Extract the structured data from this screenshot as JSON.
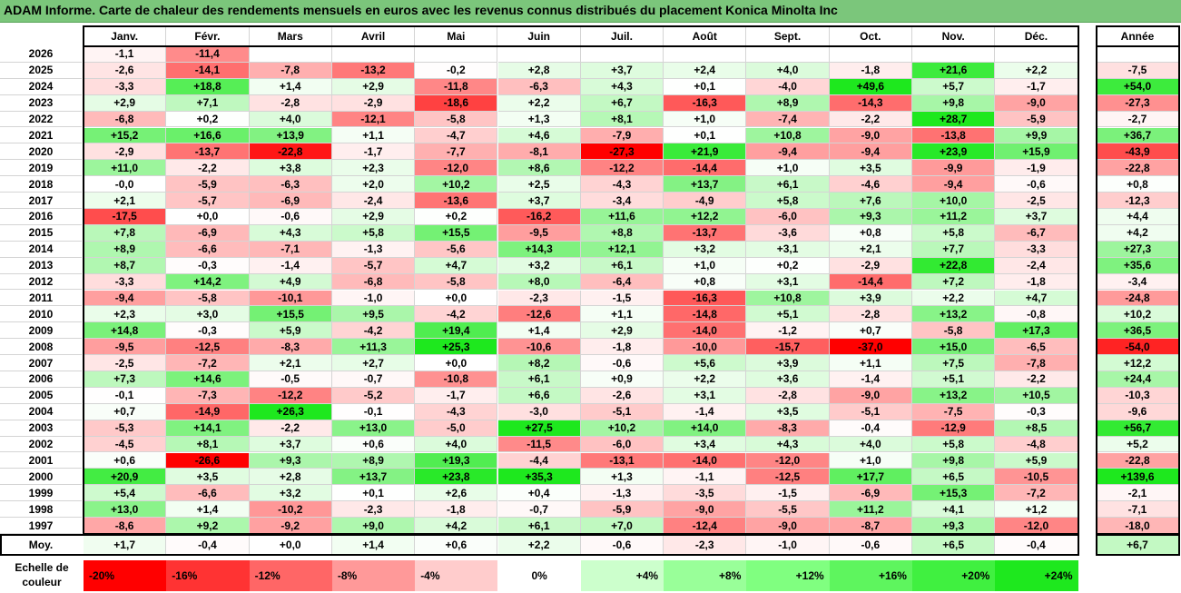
{
  "title": "ADAM Informe. Carte de chaleur des rendements mensuels en euros avec les revenus connus distribués du placement Konica Minolta Inc",
  "chart_data": {
    "type": "heatmap",
    "columns": [
      "Janv.",
      "Févr.",
      "Mars",
      "Avril",
      "Mai",
      "Juin",
      "Juil.",
      "Août",
      "Sept.",
      "Oct.",
      "Nov.",
      "Déc."
    ],
    "year_column": "Année",
    "average_label": "Moy.",
    "rows": [
      {
        "year": "2026",
        "values": [
          "-1,1",
          "-11,4",
          "",
          "",
          "",
          "",
          "",
          "",
          "",
          "",
          "",
          ""
        ],
        "annual": ""
      },
      {
        "year": "2025",
        "values": [
          "-2,6",
          "-14,1",
          "-7,8",
          "-13,2",
          "-0,2",
          "+2,8",
          "+3,7",
          "+2,4",
          "+4,0",
          "-1,8",
          "+21,6",
          "+2,2"
        ],
        "annual": "-7,5"
      },
      {
        "year": "2024",
        "values": [
          "-3,3",
          "+18,8",
          "+1,4",
          "+2,9",
          "-11,8",
          "-6,3",
          "+4,3",
          "+0,1",
          "-4,0",
          "+49,6",
          "+5,7",
          "-1,7"
        ],
        "annual": "+54,0"
      },
      {
        "year": "2023",
        "values": [
          "+2,9",
          "+7,1",
          "-2,8",
          "-2,9",
          "-18,6",
          "+2,2",
          "+6,7",
          "-16,3",
          "+8,9",
          "-14,3",
          "+9,8",
          "-9,0"
        ],
        "annual": "-27,3"
      },
      {
        "year": "2022",
        "values": [
          "-6,8",
          "+0,2",
          "+4,0",
          "-12,1",
          "-5,8",
          "+1,3",
          "+8,1",
          "+1,0",
          "-7,4",
          "-2,2",
          "+28,7",
          "-5,9"
        ],
        "annual": "-2,7"
      },
      {
        "year": "2021",
        "values": [
          "+15,2",
          "+16,6",
          "+13,9",
          "+1,1",
          "-4,7",
          "+4,6",
          "-7,9",
          "+0,1",
          "+10,8",
          "-9,0",
          "-13,8",
          "+9,9"
        ],
        "annual": "+36,7"
      },
      {
        "year": "2020",
        "values": [
          "-2,9",
          "-13,7",
          "-22,8",
          "-1,7",
          "-7,7",
          "-8,1",
          "-27,3",
          "+21,9",
          "-9,4",
          "-9,4",
          "+23,9",
          "+15,9"
        ],
        "annual": "-43,9"
      },
      {
        "year": "2019",
        "values": [
          "+11,0",
          "-2,2",
          "+3,8",
          "+2,3",
          "-12,0",
          "+8,6",
          "-12,2",
          "-14,4",
          "+1,0",
          "+3,5",
          "-9,9",
          "-1,9"
        ],
        "annual": "-22,8"
      },
      {
        "year": "2018",
        "values": [
          "-0,0",
          "-5,9",
          "-6,3",
          "+2,0",
          "+10,2",
          "+2,5",
          "-4,3",
          "+13,7",
          "+6,1",
          "-4,6",
          "-9,4",
          "-0,6"
        ],
        "annual": "+0,8"
      },
      {
        "year": "2017",
        "values": [
          "+2,1",
          "-5,7",
          "-6,9",
          "-2,4",
          "-13,6",
          "+3,7",
          "-3,4",
          "-4,9",
          "+5,8",
          "+7,6",
          "+10,0",
          "-2,5"
        ],
        "annual": "-12,3"
      },
      {
        "year": "2016",
        "values": [
          "-17,5",
          "+0,0",
          "-0,6",
          "+2,9",
          "+0,2",
          "-16,2",
          "+11,6",
          "+12,2",
          "-6,0",
          "+9,3",
          "+11,2",
          "+3,7"
        ],
        "annual": "+4,4"
      },
      {
        "year": "2015",
        "values": [
          "+7,8",
          "-6,9",
          "+4,3",
          "+5,8",
          "+15,5",
          "-9,5",
          "+8,8",
          "-13,7",
          "-3,6",
          "+0,8",
          "+5,8",
          "-6,7"
        ],
        "annual": "+4,2"
      },
      {
        "year": "2014",
        "values": [
          "+8,9",
          "-6,6",
          "-7,1",
          "-1,3",
          "-5,6",
          "+14,3",
          "+12,1",
          "+3,2",
          "+3,1",
          "+2,1",
          "+7,7",
          "-3,3"
        ],
        "annual": "+27,3"
      },
      {
        "year": "2013",
        "values": [
          "+8,7",
          "-0,3",
          "-1,4",
          "-5,7",
          "+4,7",
          "+3,2",
          "+6,1",
          "+1,0",
          "+0,2",
          "-2,9",
          "+22,8",
          "-2,4"
        ],
        "annual": "+35,6"
      },
      {
        "year": "2012",
        "values": [
          "-3,3",
          "+14,2",
          "+4,9",
          "-6,8",
          "-5,8",
          "+8,0",
          "-6,4",
          "+0,8",
          "+3,1",
          "-14,4",
          "+7,2",
          "-1,8"
        ],
        "annual": "-3,4"
      },
      {
        "year": "2011",
        "values": [
          "-9,4",
          "-5,8",
          "-10,1",
          "-1,0",
          "+0,0",
          "-2,3",
          "-1,5",
          "-16,3",
          "+10,8",
          "+3,9",
          "+2,2",
          "+4,7"
        ],
        "annual": "-24,8"
      },
      {
        "year": "2010",
        "values": [
          "+2,3",
          "+3,0",
          "+15,5",
          "+9,5",
          "-4,2",
          "-12,6",
          "+1,1",
          "-14,8",
          "+5,1",
          "-2,8",
          "+13,2",
          "-0,8"
        ],
        "annual": "+10,2"
      },
      {
        "year": "2009",
        "values": [
          "+14,8",
          "-0,3",
          "+5,9",
          "-4,2",
          "+19,4",
          "+1,4",
          "+2,9",
          "-14,0",
          "-1,2",
          "+0,7",
          "-5,8",
          "+17,3"
        ],
        "annual": "+36,5"
      },
      {
        "year": "2008",
        "values": [
          "-9,5",
          "-12,5",
          "-8,3",
          "+11,3",
          "+25,3",
          "-10,6",
          "-1,8",
          "-10,0",
          "-15,7",
          "-37,0",
          "+15,0",
          "-6,5"
        ],
        "annual": "-54,0"
      },
      {
        "year": "2007",
        "values": [
          "-2,5",
          "-7,2",
          "+2,1",
          "+2,7",
          "+0,0",
          "+8,2",
          "-0,6",
          "+5,6",
          "+3,9",
          "+1,1",
          "+7,5",
          "-7,8"
        ],
        "annual": "+12,2"
      },
      {
        "year": "2006",
        "values": [
          "+7,3",
          "+14,6",
          "-0,5",
          "-0,7",
          "-10,8",
          "+6,1",
          "+0,9",
          "+2,2",
          "+3,6",
          "-1,4",
          "+5,1",
          "-2,2"
        ],
        "annual": "+24,4"
      },
      {
        "year": "2005",
        "values": [
          "-0,1",
          "-7,3",
          "-12,2",
          "-5,2",
          "-1,7",
          "+6,6",
          "-2,6",
          "+3,1",
          "-2,8",
          "-9,0",
          "+13,2",
          "+10,5"
        ],
        "annual": "-10,3"
      },
      {
        "year": "2004",
        "values": [
          "+0,7",
          "-14,9",
          "+26,3",
          "-0,1",
          "-4,3",
          "-3,0",
          "-5,1",
          "-1,4",
          "+3,5",
          "-5,1",
          "-7,5",
          "-0,3"
        ],
        "annual": "-9,6"
      },
      {
        "year": "2003",
        "values": [
          "-5,3",
          "+14,1",
          "-2,2",
          "+13,0",
          "-5,0",
          "+27,5",
          "+10,2",
          "+14,0",
          "-8,3",
          "-0,4",
          "-12,9",
          "+8,5"
        ],
        "annual": "+56,7"
      },
      {
        "year": "2002",
        "values": [
          "-4,5",
          "+8,1",
          "+3,7",
          "+0,6",
          "+4,0",
          "-11,5",
          "-6,0",
          "+3,4",
          "+4,3",
          "+4,0",
          "+5,8",
          "-4,8"
        ],
        "annual": "+5,2"
      },
      {
        "year": "2001",
        "values": [
          "+0,6",
          "-26,6",
          "+9,3",
          "+8,9",
          "+19,3",
          "-4,4",
          "-13,1",
          "-14,0",
          "-12,0",
          "+1,0",
          "+9,8",
          "+5,9"
        ],
        "annual": "-22,8"
      },
      {
        "year": "2000",
        "values": [
          "+20,9",
          "+3,5",
          "+2,8",
          "+13,7",
          "+23,8",
          "+35,3",
          "+1,3",
          "-1,1",
          "-12,5",
          "+17,7",
          "+6,5",
          "-10,5"
        ],
        "annual": "+139,6"
      },
      {
        "year": "1999",
        "values": [
          "+5,4",
          "-6,6",
          "+3,2",
          "+0,1",
          "+2,6",
          "+0,4",
          "-1,3",
          "-3,5",
          "-1,5",
          "-6,9",
          "+15,3",
          "-7,2"
        ],
        "annual": "-2,1"
      },
      {
        "year": "1998",
        "values": [
          "+13,0",
          "+1,4",
          "-10,2",
          "-2,3",
          "-1,8",
          "-0,7",
          "-5,9",
          "-9,0",
          "-5,5",
          "+11,2",
          "+4,1",
          "+1,2"
        ],
        "annual": "-7,1"
      },
      {
        "year": "1997",
        "values": [
          "-8,6",
          "+9,2",
          "-9,2",
          "+9,0",
          "+4,2",
          "+6,1",
          "+7,0",
          "-12,4",
          "-9,0",
          "-8,7",
          "+9,3",
          "-12,0"
        ],
        "annual": "-18,0"
      }
    ],
    "averages": {
      "values": [
        "+1,7",
        "-0,4",
        "+0,0",
        "+1,4",
        "+0,6",
        "+2,2",
        "-0,6",
        "-2,3",
        "-1,0",
        "-0,6",
        "+6,5",
        "-0,4"
      ],
      "annual": "+6,7"
    },
    "legend": {
      "label": "Echelle de couleur",
      "steps": [
        {
          "label": "-20%",
          "color": "#ff0000"
        },
        {
          "label": "-16%",
          "color": "#ff3333"
        },
        {
          "label": "-12%",
          "color": "#ff6666"
        },
        {
          "label": "-8%",
          "color": "#ff9999"
        },
        {
          "label": "-4%",
          "color": "#ffcccc"
        },
        {
          "label": "0%",
          "color": "#ffffff"
        },
        {
          "label": "+4%",
          "color": "#ccffcc"
        },
        {
          "label": "+8%",
          "color": "#99ff99"
        },
        {
          "label": "+12%",
          "color": "#80ff80"
        },
        {
          "label": "+16%",
          "color": "#5ef55e"
        },
        {
          "label": "+20%",
          "color": "#40f040"
        },
        {
          "label": "+24%",
          "color": "#1ee81e"
        }
      ]
    }
  }
}
